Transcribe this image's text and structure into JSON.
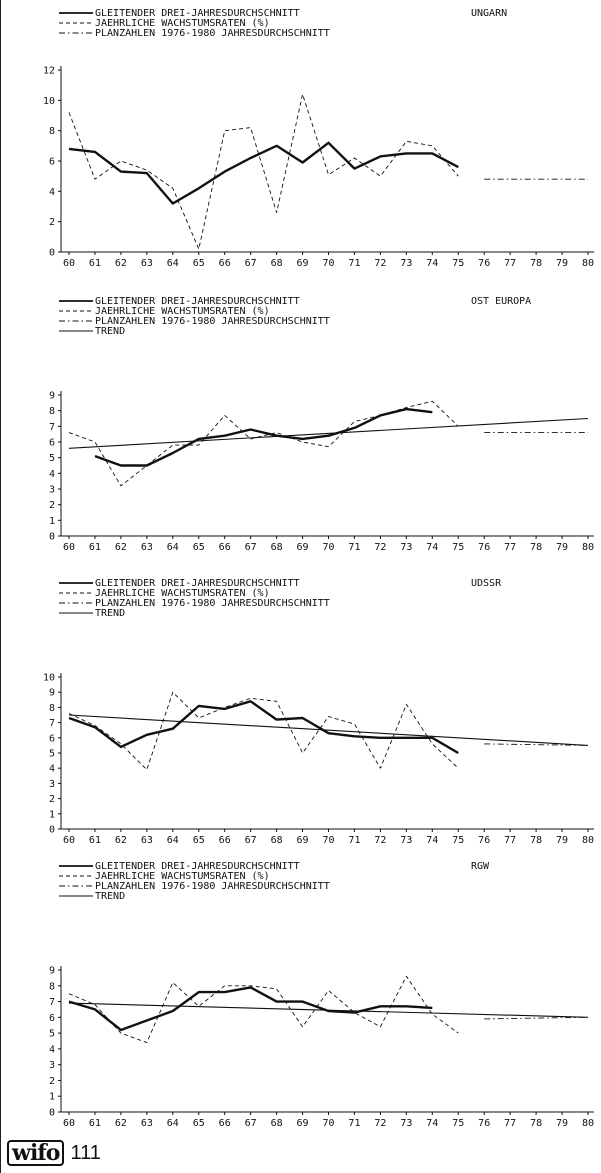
{
  "chart_data": [
    {
      "type": "line",
      "title": "UNGARN",
      "ylim": [
        0,
        12
      ],
      "yticks": [
        0,
        2,
        4,
        6,
        8,
        10,
        12
      ],
      "x": [
        60,
        61,
        62,
        63,
        64,
        65,
        66,
        67,
        68,
        69,
        70,
        71,
        72,
        73,
        74,
        75,
        76,
        77,
        78,
        79,
        80
      ],
      "legend": [
        "GLEITENDER DREI-JAHRESDURCHSCHNITT",
        "JAEHRLICHE WACHSTUMSRATEN (%)",
        "PLANZAHLEN 1976-1980  JAHRESDURCHSCHNITT"
      ],
      "series": [
        {
          "name": "GLEITENDER DREI-JAHRESDURCHSCHNITT",
          "style": "thick",
          "x": [
            60,
            61,
            62,
            63,
            64,
            65,
            66,
            67,
            68,
            69,
            70,
            71,
            72,
            73,
            74,
            75
          ],
          "values": [
            6.8,
            6.6,
            5.3,
            5.2,
            3.2,
            4.2,
            5.3,
            6.2,
            7.0,
            5.9,
            7.2,
            5.5,
            6.3,
            6.5,
            6.5,
            5.6
          ]
        },
        {
          "name": "JAEHRLICHE WACHSTUMSRATEN (%)",
          "style": "dashed",
          "x": [
            60,
            61,
            62,
            63,
            64,
            65,
            66,
            67,
            68,
            69,
            70,
            71,
            72,
            73,
            74,
            75
          ],
          "values": [
            9.2,
            4.8,
            6.0,
            5.4,
            4.2,
            0.2,
            8.0,
            8.2,
            2.6,
            10.4,
            5.1,
            6.2,
            5.0,
            7.3,
            7.0,
            5.0
          ]
        },
        {
          "name": "PLANZAHLEN 1976-1980  JAHRESDURCHSCHNITT",
          "style": "dashdot",
          "x": [
            76,
            80
          ],
          "values": [
            4.8,
            4.8
          ]
        }
      ]
    },
    {
      "type": "line",
      "title": "OST EUROPA",
      "ylim": [
        0,
        9
      ],
      "yticks": [
        0,
        1,
        2,
        3,
        4,
        5,
        6,
        7,
        8,
        9
      ],
      "x": [
        60,
        61,
        62,
        63,
        64,
        65,
        66,
        67,
        68,
        69,
        70,
        71,
        72,
        73,
        74,
        75,
        76,
        77,
        78,
        79,
        80
      ],
      "legend": [
        "GLEITENDER DREI-JAHRESDURCHSCHNITT",
        "JAEHRLICHE WACHSTUMSRATEN (%)",
        "PLANZAHLEN 1976-1980  JAHRESDURCHSCHNITT",
        "TREND"
      ],
      "series": [
        {
          "name": "GLEITENDER DREI-JAHRESDURCHSCHNITT",
          "style": "thick",
          "x": [
            61,
            62,
            63,
            64,
            65,
            66,
            67,
            68,
            69,
            70,
            71,
            72,
            73,
            74
          ],
          "values": [
            5.1,
            4.5,
            4.5,
            5.3,
            6.2,
            6.4,
            6.8,
            6.4,
            6.2,
            6.4,
            6.9,
            7.7,
            8.1,
            7.9
          ]
        },
        {
          "name": "JAEHRLICHE WACHSTUMSRATEN (%)",
          "style": "dashed",
          "x": [
            60,
            61,
            62,
            63,
            64,
            65,
            66,
            67,
            68,
            69,
            70,
            71,
            72,
            73,
            74,
            75
          ],
          "values": [
            6.6,
            6.0,
            3.2,
            4.5,
            5.8,
            5.8,
            7.7,
            6.2,
            6.6,
            6.0,
            5.7,
            7.3,
            7.7,
            8.2,
            8.6,
            7.0
          ]
        },
        {
          "name": "PLANZAHLEN 1976-1980  JAHRESDURCHSCHNITT",
          "style": "dashdot",
          "x": [
            76,
            80
          ],
          "values": [
            6.6,
            6.6
          ]
        },
        {
          "name": "TREND",
          "style": "thin",
          "x": [
            60,
            80
          ],
          "values": [
            5.6,
            7.5
          ]
        }
      ]
    },
    {
      "type": "line",
      "title": "UDSSR",
      "ylim": [
        0,
        10
      ],
      "yticks": [
        0,
        1,
        2,
        3,
        4,
        5,
        6,
        7,
        8,
        9,
        10
      ],
      "x": [
        60,
        61,
        62,
        63,
        64,
        65,
        66,
        67,
        68,
        69,
        70,
        71,
        72,
        73,
        74,
        75,
        76,
        77,
        78,
        79,
        80
      ],
      "legend": [
        "GLEITENDER DREI-JAHRESDURCHSCHNITT",
        "JAEHRLICHE WACHSTUMSRATEN (%)",
        "PLANZAHLEN 1976-1980  JAHRESDURCHSCHNITT",
        "TREND"
      ],
      "series": [
        {
          "name": "GLEITENDER DREI-JAHRESDURCHSCHNITT",
          "style": "thick",
          "x": [
            60,
            61,
            62,
            63,
            64,
            65,
            66,
            67,
            68,
            69,
            70,
            71,
            72,
            73,
            74,
            75
          ],
          "values": [
            7.3,
            6.7,
            5.4,
            6.2,
            6.6,
            8.1,
            7.9,
            8.4,
            7.2,
            7.3,
            6.3,
            6.1,
            6.0,
            6.0,
            6.0,
            5.0
          ]
        },
        {
          "name": "JAEHRLICHE WACHSTUMSRATEN (%)",
          "style": "dashed",
          "x": [
            60,
            61,
            62,
            63,
            64,
            65,
            66,
            67,
            68,
            69,
            70,
            71,
            72,
            73,
            74,
            75
          ],
          "values": [
            7.6,
            6.8,
            5.6,
            3.9,
            9.0,
            7.3,
            8.0,
            8.6,
            8.4,
            5.0,
            7.4,
            6.9,
            4.0,
            8.2,
            5.6,
            4.0
          ]
        },
        {
          "name": "PLANZAHLEN 1976-1980  JAHRESDURCHSCHNITT",
          "style": "dashdot",
          "x": [
            76,
            80
          ],
          "values": [
            5.6,
            5.5
          ]
        },
        {
          "name": "TREND",
          "style": "thin",
          "x": [
            60,
            80
          ],
          "values": [
            7.5,
            5.5
          ]
        }
      ]
    },
    {
      "type": "line",
      "title": "RGW",
      "ylim": [
        0,
        9
      ],
      "yticks": [
        0,
        1,
        2,
        3,
        4,
        5,
        6,
        7,
        8,
        9
      ],
      "x": [
        60,
        61,
        62,
        63,
        64,
        65,
        66,
        67,
        68,
        69,
        70,
        71,
        72,
        73,
        74,
        75,
        76,
        77,
        78,
        79,
        80
      ],
      "legend": [
        "GLEITENDER DREI-JAHRESDURCHSCHNITT",
        "JAEHRLICHE WACHSTUMSRATEN (%)",
        "PLANZAHLEN 1976-1980  JAHRESDURCHSCHNITT",
        "TREND"
      ],
      "series": [
        {
          "name": "GLEITENDER DREI-JAHRESDURCHSCHNITT",
          "style": "thick",
          "x": [
            60,
            61,
            62,
            63,
            64,
            65,
            66,
            67,
            68,
            69,
            70,
            71,
            72,
            73,
            74
          ],
          "values": [
            7.0,
            6.5,
            5.2,
            5.8,
            6.4,
            7.6,
            7.6,
            7.9,
            7.0,
            7.0,
            6.4,
            6.3,
            6.7,
            6.7,
            6.6
          ]
        },
        {
          "name": "JAEHRLICHE WACHSTUMSRATEN (%)",
          "style": "dashed",
          "x": [
            60,
            61,
            62,
            63,
            64,
            65,
            66,
            67,
            68,
            69,
            70,
            71,
            72,
            73,
            74,
            75
          ],
          "values": [
            7.5,
            6.8,
            5.0,
            4.4,
            8.2,
            6.7,
            8.0,
            8.0,
            7.8,
            5.4,
            7.7,
            6.3,
            5.4,
            8.6,
            6.2,
            5.0
          ]
        },
        {
          "name": "PLANZAHLEN 1976-1980  JAHRESDURCHSCHNITT",
          "style": "dashdot",
          "x": [
            76,
            80
          ],
          "values": [
            5.9,
            6.0
          ]
        },
        {
          "name": "TREND",
          "style": "thin",
          "x": [
            60,
            80
          ],
          "values": [
            6.9,
            6.0
          ]
        }
      ]
    }
  ],
  "footer": {
    "logo": "wifo",
    "page_number": "111"
  }
}
